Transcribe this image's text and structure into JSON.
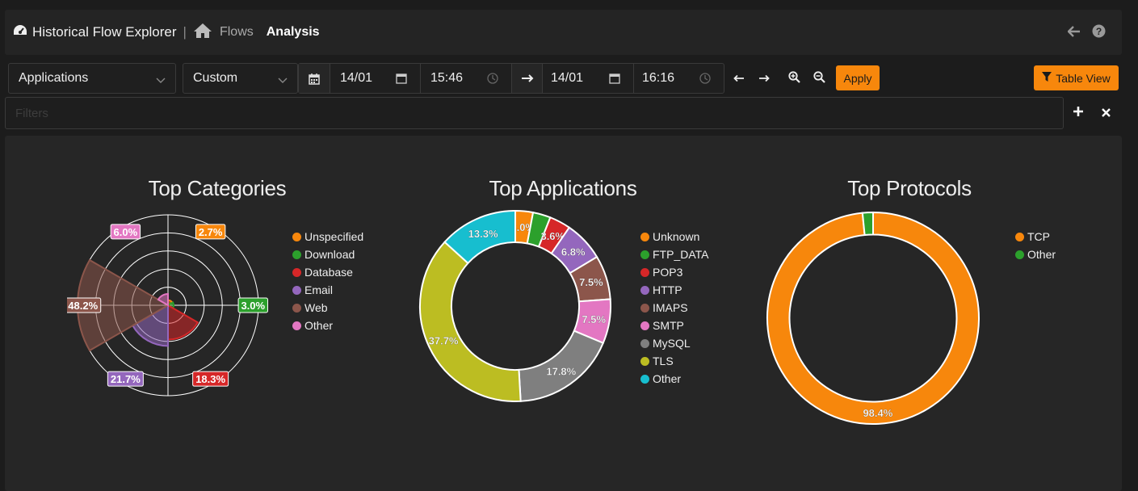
{
  "header": {
    "title": "Historical Flow Explorer",
    "separator": "|",
    "crumbs": [
      {
        "label": "Flows"
      },
      {
        "label": "Analysis"
      }
    ]
  },
  "toolbar": {
    "view_select": "Applications",
    "range_select": "Custom",
    "from_date": "14/01",
    "from_time": "15:46",
    "to_date": "14/01",
    "to_time": "16:16",
    "apply_label": "Apply",
    "table_view_label": "Table View"
  },
  "filters": {
    "placeholder": "Filters"
  },
  "colors": {
    "orange": "#f7870c",
    "green": "#2ca02c",
    "red": "#d62728",
    "purple": "#9467bd",
    "brown": "#8c564b",
    "pink": "#e377c2",
    "gray": "#7f7f7f",
    "olive": "#bcbd22",
    "cyan": "#17becf"
  },
  "chart_data": [
    {
      "type": "polar-area",
      "title": "Top Categories",
      "legend": [
        "Unspecified",
        "Download",
        "Database",
        "Email",
        "Web",
        "Other"
      ],
      "values": [
        2.7,
        3.0,
        18.3,
        21.7,
        48.2,
        6.0
      ],
      "labels": [
        "2.7%",
        "3.0%",
        "18.3%",
        "21.7%",
        "48.2%",
        "6.0%"
      ]
    },
    {
      "type": "doughnut",
      "title": "Top Applications",
      "legend": [
        "Unknown",
        "FTP_DATA",
        "POP3",
        "HTTP",
        "IMAPS",
        "SMTP",
        "MySQL",
        "TLS",
        "Other"
      ],
      "values": [
        3.0,
        3.0,
        3.6,
        6.8,
        7.5,
        7.5,
        17.8,
        37.7,
        13.3
      ],
      "labels": [
        "3.0%",
        "",
        "3.6%",
        "6.8%",
        "7.5%",
        "7.5%",
        "17.8%",
        "37.7%",
        "13.3%"
      ]
    },
    {
      "type": "doughnut",
      "title": "Top Protocols",
      "legend": [
        "TCP",
        "Other"
      ],
      "values": [
        98.4,
        1.6
      ],
      "labels": [
        "98.4%",
        ""
      ]
    }
  ]
}
